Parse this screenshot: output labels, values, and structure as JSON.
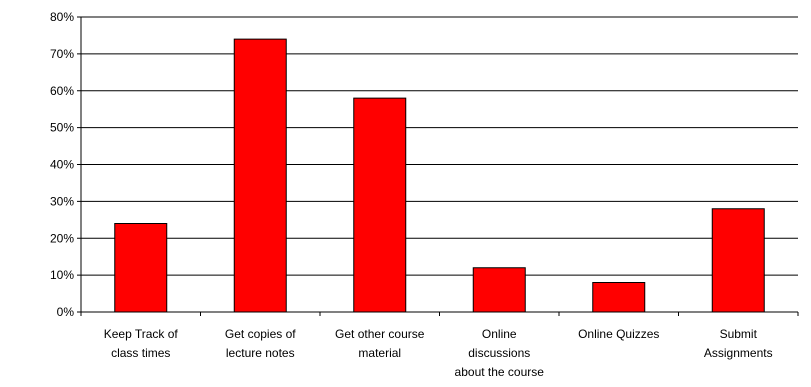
{
  "chart_data": {
    "type": "bar",
    "title": "",
    "xlabel": "",
    "ylabel": "",
    "ylim": [
      0,
      80
    ],
    "y_tick_values": [
      0,
      10,
      20,
      30,
      40,
      50,
      60,
      70,
      80
    ],
    "y_tick_labels": [
      "0%",
      "10%",
      "20%",
      "30%",
      "40%",
      "50%",
      "60%",
      "70%",
      "80%"
    ],
    "grid": true,
    "legend": "none",
    "bar_color": "#ff0000",
    "bar_outline_color": "#000000",
    "categories": [
      [
        "Keep Track of",
        "class times"
      ],
      [
        "Get copies of",
        "lecture notes"
      ],
      [
        "Get other course",
        "material"
      ],
      [
        "Online",
        "discussions",
        "about the course"
      ],
      [
        "Online Quizzes"
      ],
      [
        "Submit",
        "Assignments"
      ]
    ],
    "values": [
      24,
      74,
      58,
      12,
      8,
      28
    ]
  }
}
